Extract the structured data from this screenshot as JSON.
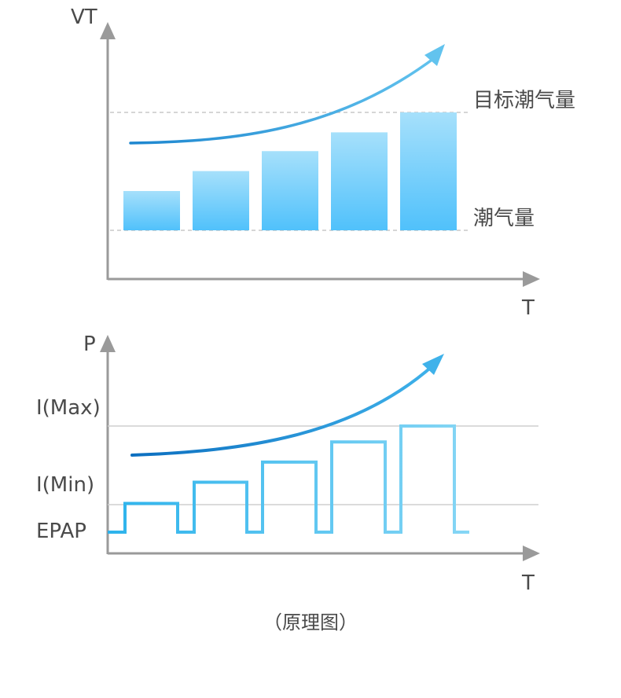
{
  "chart_top": {
    "y_axis_label": "VT",
    "x_axis_label": "T",
    "line_labels": {
      "target": "目标潮气量",
      "tidal": "潮气量"
    },
    "bars": [
      {
        "name": "bar-1",
        "value": 0.33
      },
      {
        "name": "bar-2",
        "value": 0.5
      },
      {
        "name": "bar-3",
        "value": 0.67
      },
      {
        "name": "bar-4",
        "value": 0.83
      },
      {
        "name": "bar-5",
        "value": 1.0
      }
    ],
    "colors": {
      "bar_top": "#a6e0fb",
      "bar_bottom": "#50c1fb",
      "arrow": "#3aa8e6"
    }
  },
  "chart_bottom": {
    "y_axis_label": "P",
    "x_axis_label": "T",
    "level_labels": {
      "max": "I(Max)",
      "min": "I(Min)",
      "epap": "EPAP"
    },
    "pulses": [
      {
        "name": "pulse-1",
        "level": 0.27
      },
      {
        "name": "pulse-2",
        "level": 0.47
      },
      {
        "name": "pulse-3",
        "level": 0.66
      },
      {
        "name": "pulse-4",
        "level": 0.85
      },
      {
        "name": "pulse-5",
        "level": 1.0
      }
    ],
    "colors": {
      "wave_start": "#2db3ec",
      "wave_end": "#86d6f5",
      "arrow": "#1a8fd6"
    }
  },
  "caption": "（原理图）"
}
